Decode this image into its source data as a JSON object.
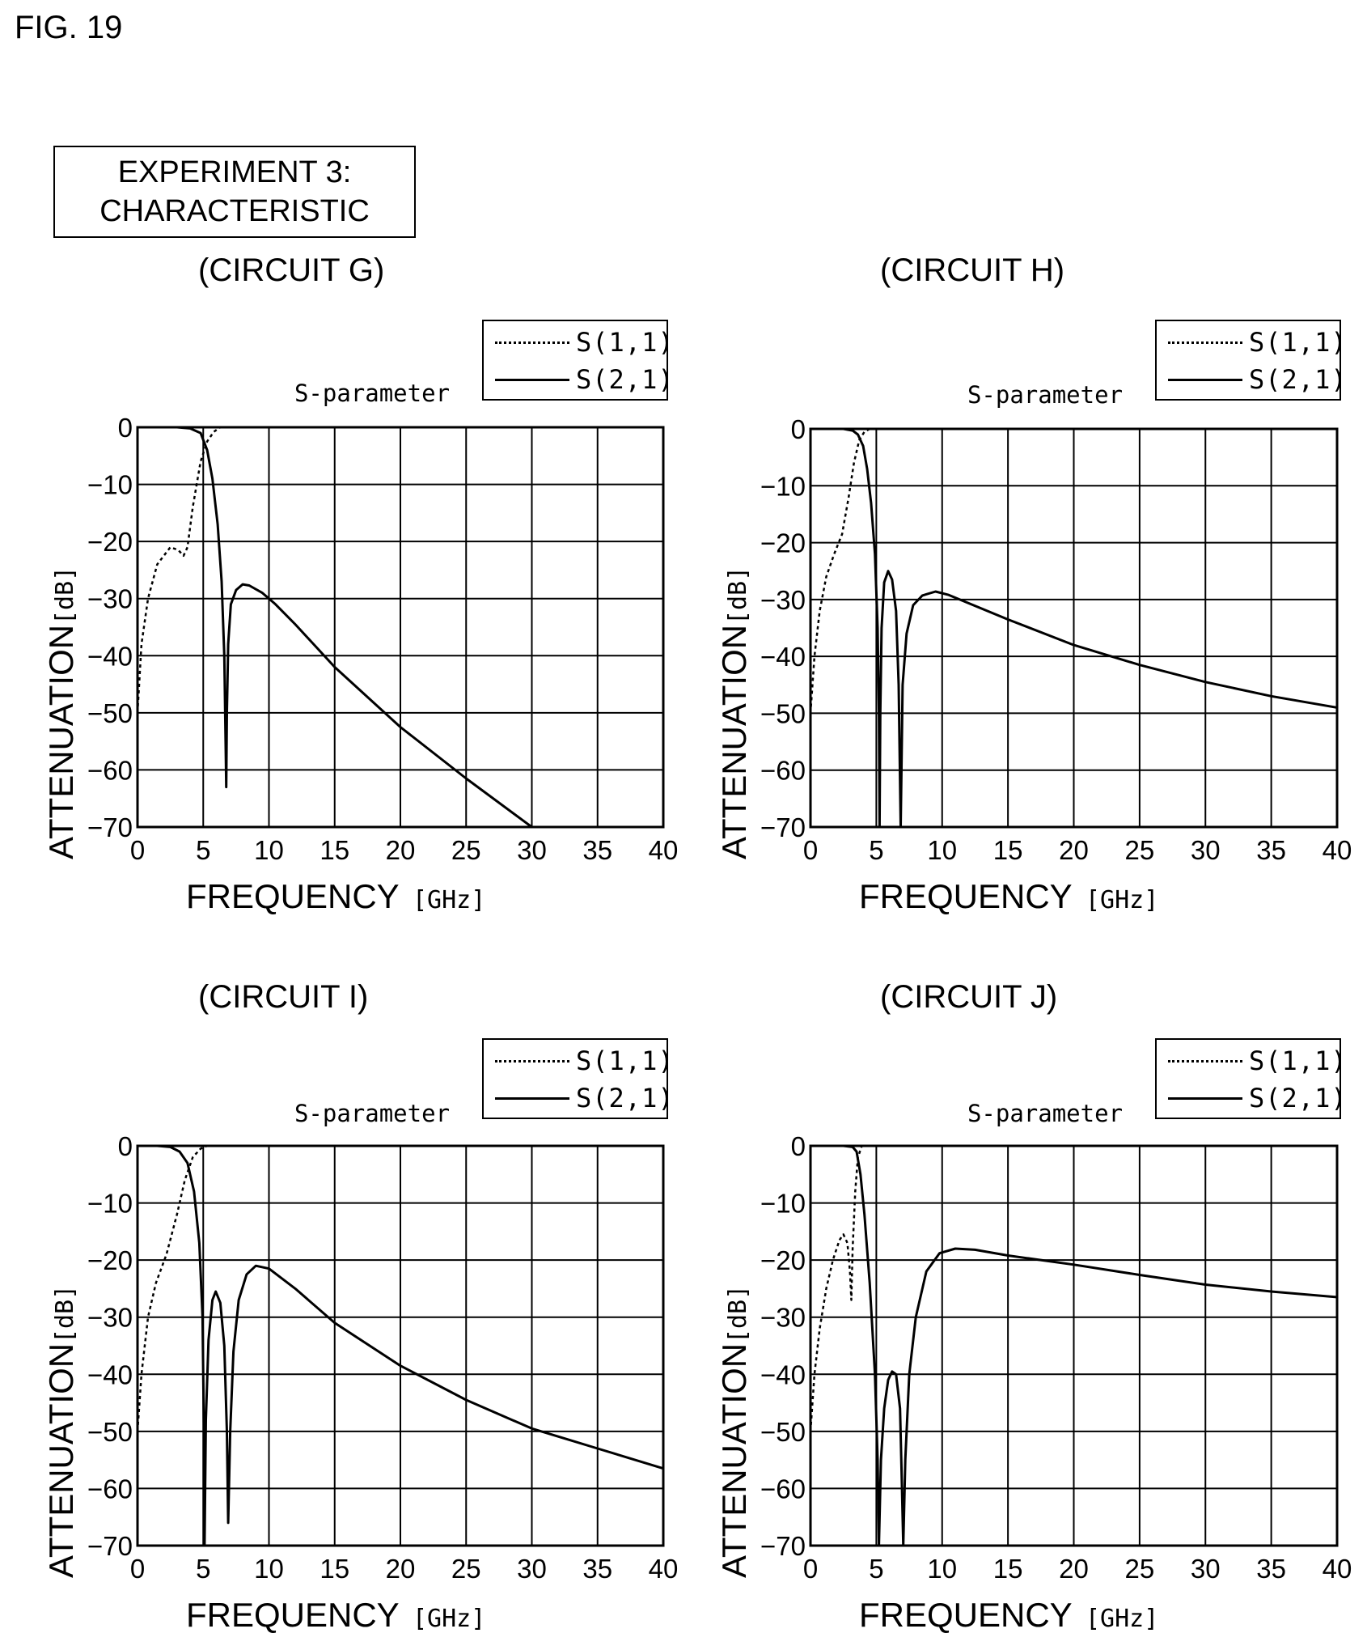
{
  "figure_label": "FIG. 19",
  "experiment_box": {
    "line1": "EXPERIMENT 3:",
    "line2": "CHARACTERISTIC"
  },
  "chart_data": [
    {
      "panel_title": "(CIRCUIT G)",
      "type": "line",
      "title": "S-parameter",
      "xlabel": "FREQUENCY",
      "xunit": "[GHz]",
      "ylabel": "ATTENUATION",
      "yunit": "[dB]",
      "xlim": [
        0,
        40
      ],
      "ylim": [
        -70,
        0
      ],
      "xticks": [
        "0",
        "5",
        "10",
        "15",
        "20",
        "25",
        "30",
        "35",
        "40"
      ],
      "yticks": [
        "0",
        "-10",
        "-20",
        "-30",
        "-40",
        "-50",
        "-60",
        "-70"
      ],
      "grid": true,
      "legend_position": "top-right",
      "series": [
        {
          "name": "S(1,1)",
          "style": "dotted",
          "points": [
            [
              0,
              -50
            ],
            [
              0.3,
              -38
            ],
            [
              0.8,
              -30
            ],
            [
              1.5,
              -24
            ],
            [
              2.5,
              -21
            ],
            [
              3.1,
              -21.5
            ],
            [
              3.5,
              -22.5
            ],
            [
              3.8,
              -21
            ],
            [
              4.2,
              -14
            ],
            [
              4.8,
              -6
            ],
            [
              5.3,
              -2.5
            ],
            [
              5.8,
              -0.8
            ],
            [
              6.3,
              0
            ]
          ]
        },
        {
          "name": "S(2,1)",
          "style": "solid",
          "points": [
            [
              0,
              0
            ],
            [
              3,
              0
            ],
            [
              4,
              -0.2
            ],
            [
              4.8,
              -1
            ],
            [
              5.3,
              -4
            ],
            [
              5.7,
              -9
            ],
            [
              6.1,
              -17
            ],
            [
              6.4,
              -27
            ],
            [
              6.6,
              -40
            ],
            [
              6.7,
              -55
            ],
            [
              6.75,
              -63
            ],
            [
              6.8,
              -50
            ],
            [
              6.9,
              -38
            ],
            [
              7.1,
              -31
            ],
            [
              7.5,
              -28.5
            ],
            [
              8,
              -27.5
            ],
            [
              8.5,
              -27.7
            ],
            [
              9.5,
              -29
            ],
            [
              10.5,
              -31
            ],
            [
              12,
              -34.5
            ],
            [
              15,
              -42
            ],
            [
              20,
              -52.5
            ],
            [
              25,
              -61.5
            ],
            [
              30,
              -70
            ]
          ]
        }
      ]
    },
    {
      "panel_title": "(CIRCUIT H)",
      "type": "line",
      "title": "S-parameter",
      "xlabel": "FREQUENCY",
      "xunit": "[GHz]",
      "ylabel": "ATTENUATION",
      "yunit": "[dB]",
      "xlim": [
        0,
        40
      ],
      "ylim": [
        -70,
        0
      ],
      "xticks": [
        "0",
        "5",
        "10",
        "15",
        "20",
        "25",
        "30",
        "35",
        "40"
      ],
      "yticks": [
        "0",
        "-10",
        "-20",
        "-30",
        "-40",
        "-50",
        "-60",
        "-70"
      ],
      "grid": true,
      "legend_position": "top-right",
      "series": [
        {
          "name": "S(1,1)",
          "style": "dotted",
          "points": [
            [
              0,
              -50
            ],
            [
              0.3,
              -40
            ],
            [
              0.7,
              -32
            ],
            [
              1.2,
              -26
            ],
            [
              1.8,
              -22
            ],
            [
              2.4,
              -18.5
            ],
            [
              2.9,
              -12
            ],
            [
              3.3,
              -6
            ],
            [
              3.7,
              -2
            ],
            [
              4.1,
              -0.5
            ],
            [
              4.5,
              0
            ]
          ]
        },
        {
          "name": "S(2,1)",
          "style": "solid",
          "points": [
            [
              0,
              0
            ],
            [
              2.5,
              0
            ],
            [
              3.2,
              -0.3
            ],
            [
              3.6,
              -1
            ],
            [
              4,
              -3
            ],
            [
              4.3,
              -7
            ],
            [
              4.6,
              -13
            ],
            [
              4.9,
              -22
            ],
            [
              5.1,
              -35
            ],
            [
              5.2,
              -50
            ],
            [
              5.25,
              -70
            ],
            [
              5.3,
              -50
            ],
            [
              5.4,
              -35
            ],
            [
              5.6,
              -27
            ],
            [
              5.9,
              -25
            ],
            [
              6.2,
              -26.5
            ],
            [
              6.5,
              -32
            ],
            [
              6.7,
              -45
            ],
            [
              6.85,
              -70
            ],
            [
              7,
              -45
            ],
            [
              7.3,
              -36
            ],
            [
              7.8,
              -31
            ],
            [
              8.5,
              -29.3
            ],
            [
              9.5,
              -28.6
            ],
            [
              10.5,
              -29.2
            ],
            [
              15,
              -33.5
            ],
            [
              20,
              -38
            ],
            [
              25,
              -41.5
            ],
            [
              30,
              -44.5
            ],
            [
              35,
              -47
            ],
            [
              40,
              -49
            ]
          ]
        }
      ]
    },
    {
      "panel_title": "(CIRCUIT I)",
      "type": "line",
      "title": "S-parameter",
      "xlabel": "FREQUENCY",
      "xunit": "[GHz]",
      "ylabel": "ATTENUATION",
      "yunit": "[dB]",
      "xlim": [
        0,
        40
      ],
      "ylim": [
        -70,
        0
      ],
      "xticks": [
        "0",
        "5",
        "10",
        "15",
        "20",
        "25",
        "30",
        "35",
        "40"
      ],
      "yticks": [
        "0",
        "-10",
        "-20",
        "-30",
        "-40",
        "-50",
        "-60",
        "-70"
      ],
      "grid": true,
      "legend_position": "top-right",
      "series": [
        {
          "name": "S(1,1)",
          "style": "dotted",
          "points": [
            [
              0,
              -50
            ],
            [
              0.3,
              -40
            ],
            [
              0.8,
              -30
            ],
            [
              1.4,
              -24
            ],
            [
              2.2,
              -19
            ],
            [
              3,
              -12
            ],
            [
              3.6,
              -6
            ],
            [
              4.2,
              -2
            ],
            [
              4.8,
              -0.5
            ],
            [
              5.3,
              0
            ]
          ]
        },
        {
          "name": "S(2,1)",
          "style": "solid",
          "points": [
            [
              0,
              0
            ],
            [
              1.5,
              0
            ],
            [
              2.5,
              -0.2
            ],
            [
              3.2,
              -1
            ],
            [
              3.8,
              -3
            ],
            [
              4.3,
              -8
            ],
            [
              4.7,
              -17
            ],
            [
              4.95,
              -30
            ],
            [
              5.05,
              -50
            ],
            [
              5.1,
              -70
            ],
            [
              5.2,
              -48
            ],
            [
              5.4,
              -34
            ],
            [
              5.7,
              -27
            ],
            [
              5.95,
              -25.5
            ],
            [
              6.3,
              -27.5
            ],
            [
              6.6,
              -35
            ],
            [
              6.8,
              -50
            ],
            [
              6.9,
              -66
            ],
            [
              7.05,
              -50
            ],
            [
              7.3,
              -36
            ],
            [
              7.7,
              -27
            ],
            [
              8.3,
              -22.5
            ],
            [
              9,
              -21
            ],
            [
              10,
              -21.5
            ],
            [
              12,
              -25
            ],
            [
              15,
              -31
            ],
            [
              20,
              -38.5
            ],
            [
              25,
              -44.5
            ],
            [
              30,
              -49.5
            ],
            [
              35,
              -53
            ],
            [
              40,
              -56.5
            ]
          ]
        }
      ]
    },
    {
      "panel_title": "(CIRCUIT J)",
      "type": "line",
      "title": "S-parameter",
      "xlabel": "FREQUENCY",
      "xunit": "[GHz]",
      "ylabel": "ATTENUATION",
      "yunit": "[dB]",
      "xlim": [
        0,
        40
      ],
      "ylim": [
        -70,
        0
      ],
      "xticks": [
        "0",
        "5",
        "10",
        "15",
        "20",
        "25",
        "30",
        "35",
        "40"
      ],
      "yticks": [
        "0",
        "-10",
        "-20",
        "-30",
        "-40",
        "-50",
        "-60",
        "-70"
      ],
      "grid": true,
      "legend_position": "top-right",
      "series": [
        {
          "name": "S(1,1)",
          "style": "dotted",
          "points": [
            [
              0,
              -50
            ],
            [
              0.3,
              -40
            ],
            [
              0.7,
              -32
            ],
            [
              1.2,
              -25
            ],
            [
              1.7,
              -20
            ],
            [
              2.2,
              -16.5
            ],
            [
              2.5,
              -15.5
            ],
            [
              2.8,
              -17
            ],
            [
              3,
              -22
            ],
            [
              3.1,
              -27
            ],
            [
              3.2,
              -18
            ],
            [
              3.4,
              -8
            ],
            [
              3.6,
              -2
            ],
            [
              3.9,
              0
            ]
          ]
        },
        {
          "name": "S(2,1)",
          "style": "solid",
          "points": [
            [
              0,
              0
            ],
            [
              2.5,
              0
            ],
            [
              3.2,
              -0.2
            ],
            [
              3.5,
              -1
            ],
            [
              3.8,
              -5
            ],
            [
              4.1,
              -12
            ],
            [
              4.5,
              -24
            ],
            [
              4.9,
              -40
            ],
            [
              5.1,
              -55
            ],
            [
              5.2,
              -70
            ],
            [
              5.35,
              -55
            ],
            [
              5.6,
              -46
            ],
            [
              5.9,
              -41
            ],
            [
              6.2,
              -39.5
            ],
            [
              6.5,
              -40
            ],
            [
              6.8,
              -46
            ],
            [
              6.95,
              -60
            ],
            [
              7.05,
              -70
            ],
            [
              7.2,
              -55
            ],
            [
              7.5,
              -40
            ],
            [
              8,
              -30
            ],
            [
              8.8,
              -22
            ],
            [
              9.8,
              -18.8
            ],
            [
              11,
              -18
            ],
            [
              12.5,
              -18.2
            ],
            [
              15,
              -19.2
            ],
            [
              20,
              -20.8
            ],
            [
              25,
              -22.6
            ],
            [
              30,
              -24.3
            ],
            [
              35,
              -25.5
            ],
            [
              40,
              -26.5
            ]
          ]
        }
      ]
    }
  ]
}
